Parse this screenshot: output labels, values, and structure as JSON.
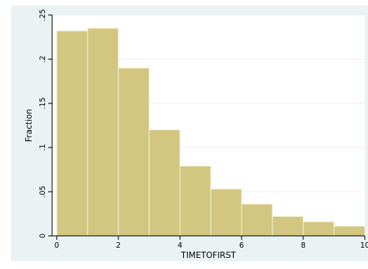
{
  "chart_data": {
    "type": "bar",
    "title": "",
    "xlabel": "TIMETOFIRST",
    "ylabel": "Fraction",
    "bin_width": 1,
    "bins": [
      {
        "x0": 0,
        "x1": 1,
        "value": 0.232
      },
      {
        "x0": 1,
        "x1": 2,
        "value": 0.235
      },
      {
        "x0": 2,
        "x1": 3,
        "value": 0.19
      },
      {
        "x0": 3,
        "x1": 4,
        "value": 0.12
      },
      {
        "x0": 4,
        "x1": 5,
        "value": 0.079
      },
      {
        "x0": 5,
        "x1": 6,
        "value": 0.053
      },
      {
        "x0": 6,
        "x1": 7,
        "value": 0.036
      },
      {
        "x0": 7,
        "x1": 8,
        "value": 0.022
      },
      {
        "x0": 8,
        "x1": 9,
        "value": 0.016
      },
      {
        "x0": 9,
        "x1": 10,
        "value": 0.011
      }
    ],
    "xlim": [
      -0.15,
      10
    ],
    "ylim": [
      0,
      0.25
    ],
    "xticks": [
      0,
      2,
      4,
      6,
      8,
      10
    ],
    "xtick_labels": [
      "0",
      "2",
      "4",
      "6",
      "8",
      "10"
    ],
    "yticks": [
      0,
      0.05,
      0.1,
      0.15,
      0.2,
      0.25
    ],
    "ytick_labels": [
      "0",
      ".05",
      ".1",
      ".15",
      ".2",
      ".25"
    ],
    "grid": "horizontal",
    "colors": {
      "background": "#eaf2f3",
      "plot_area": "#ffffff",
      "bar_fill": "#d2c680",
      "bar_edge": "#f5f0d8",
      "gridline": "#eaf2f3",
      "axis": "#000000"
    }
  }
}
